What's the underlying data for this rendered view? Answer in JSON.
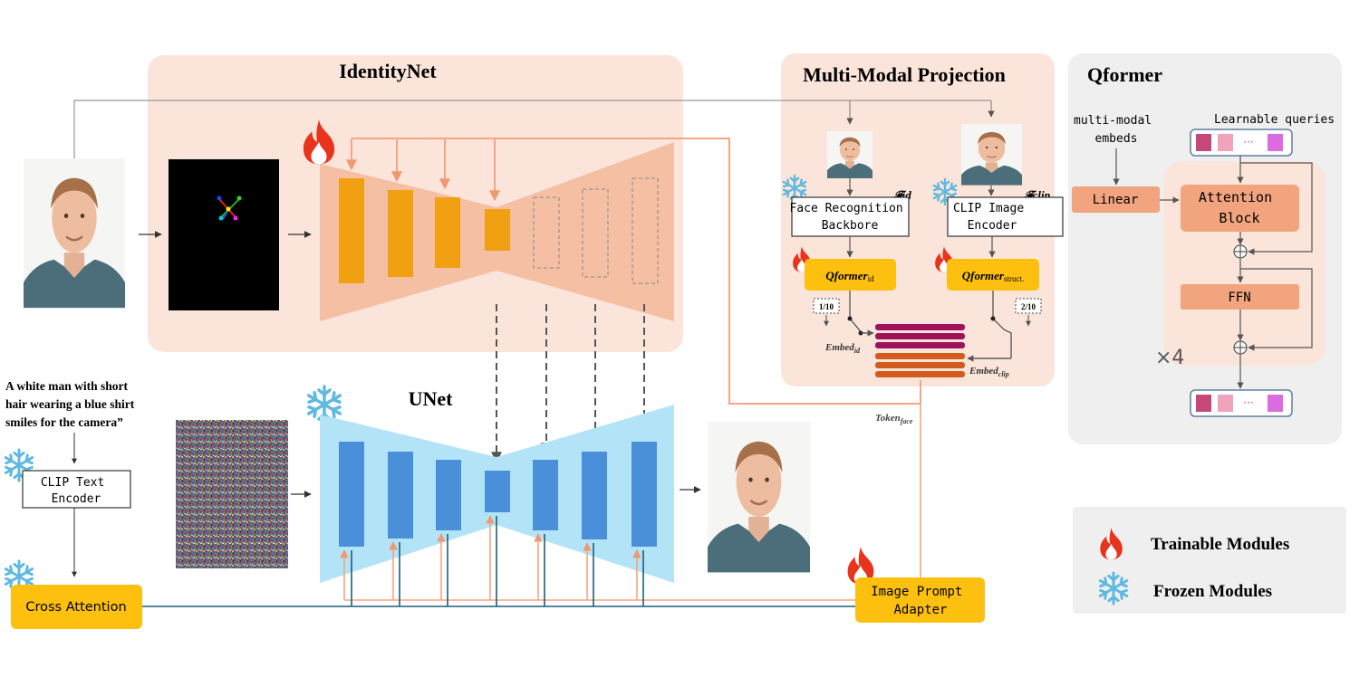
{
  "identitynet": {
    "title": "IdentityNet"
  },
  "unet": {
    "title": "UNet"
  },
  "projection": {
    "title": "Multi-Modal Projection",
    "face_recognition": "Face Recognition Backbore",
    "clip_image_encoder": "CLIP Image Encoder",
    "f_id": "𝓕id",
    "f_clip": "𝓕clip",
    "qformer_id": "Qformer",
    "qformer_id_sub": "id",
    "qformer_struct": "Qformer",
    "qformer_struct_sub": "struct.",
    "ratio_id": "1/10",
    "ratio_clip": "2/10",
    "embed_id": "Embed",
    "embed_id_sub": "id",
    "embed_clip": "Embed",
    "embed_clip_sub": "clip",
    "token_face": "Token",
    "token_face_sub": "face"
  },
  "qformer": {
    "title": "Qformer",
    "multimodal_embeds": "multi-modal embeds",
    "learnable_queries": "Learnable queries",
    "linear": "Linear",
    "attention_block": "Attention Block",
    "ffn": "FFN",
    "repeat": "×4",
    "dots": "···"
  },
  "prompt": "A white man with short hair wearing a blue shirt smiles for the camera”",
  "clip_text_encoder": "CLIP Text Encoder",
  "cross_attention": "Cross Attention",
  "image_prompt_adapter": "Image Prompt Adapter",
  "legend": {
    "trainable": "Trainable Modules",
    "frozen": "Frozen Modules"
  },
  "colors": {
    "identitynet_bg": "#fbe5da",
    "identitynet_shape": "#f4bfa3",
    "identity_block": "#f0a010",
    "unet_shape": "#b3e3f7",
    "unet_block": "#4a90d9",
    "qformer_bg": "#efefef",
    "yellow_box": "#fdc00f",
    "salmon_box": "#f1a47e",
    "orange_line": "#f4a582",
    "teal_line": "#1d5f7a",
    "embed_id": "#a0125b",
    "embed_clip": "#d25b1e"
  },
  "icons": [
    "fire-icon",
    "snowflake-icon",
    "face-photo",
    "keypoints-image",
    "noise-image",
    "query-tokens",
    "circle-plus-icon"
  ]
}
